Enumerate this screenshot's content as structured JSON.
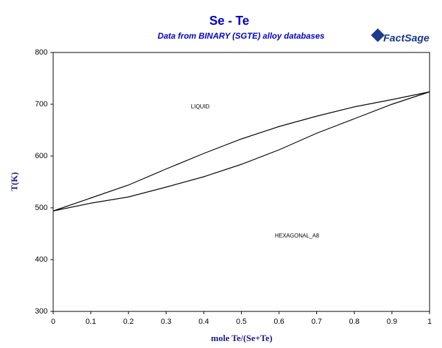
{
  "chart_data": {
    "type": "line",
    "title": "Se - Te",
    "subtitle": "Data from BINARY (SGTE) alloy databases",
    "logo": "FactSage",
    "x_label": "mole Te/(Se+Te)",
    "y_label": "T(K)",
    "x": [
      0,
      0.1,
      0.2,
      0.3,
      0.4,
      0.5,
      0.6,
      0.7,
      0.8,
      0.9,
      1
    ],
    "series": [
      {
        "color": "#000000",
        "values": [
          494,
          519,
          544,
          575,
          605,
          633,
          657,
          677,
          695,
          709,
          724
        ]
      },
      {
        "color": "#000000",
        "values": [
          494,
          509,
          521,
          540,
          560,
          584,
          612,
          644,
          672,
          700,
          724
        ]
      }
    ],
    "annotations": [
      "LIQUID",
      "HEXAGONAL_A8"
    ],
    "xlim": [
      0,
      1
    ],
    "xticks": [
      0,
      0.1,
      0.2,
      0.3,
      0.4,
      0.5,
      0.6,
      0.7,
      0.8,
      0.9,
      1
    ],
    "ylim": [
      300,
      800
    ],
    "yticks": [
      300,
      400,
      500,
      600,
      700,
      800
    ],
    "grid": false
  }
}
